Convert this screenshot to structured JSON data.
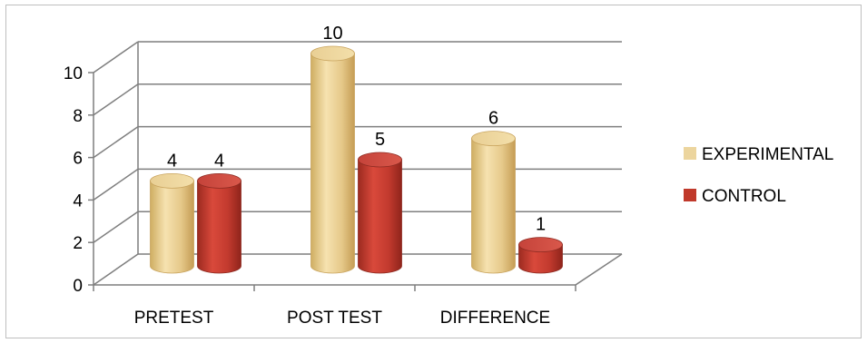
{
  "chart_data": {
    "type": "bar",
    "style": "3d-cylinder",
    "categories": [
      "PRETEST",
      "POST TEST",
      "DIFFERENCE"
    ],
    "series": [
      {
        "name": "EXPERIMENTAL",
        "values": [
          4,
          10,
          6
        ],
        "color": "#e8cf93"
      },
      {
        "name": "CONTROL",
        "values": [
          4,
          5,
          1
        ],
        "color": "#c0392b"
      }
    ],
    "title": "",
    "xlabel": "",
    "ylabel": "",
    "ylim": [
      0,
      10
    ],
    "yticks": [
      0,
      2,
      4,
      6,
      8,
      10
    ],
    "grid": true,
    "legend": "right"
  }
}
